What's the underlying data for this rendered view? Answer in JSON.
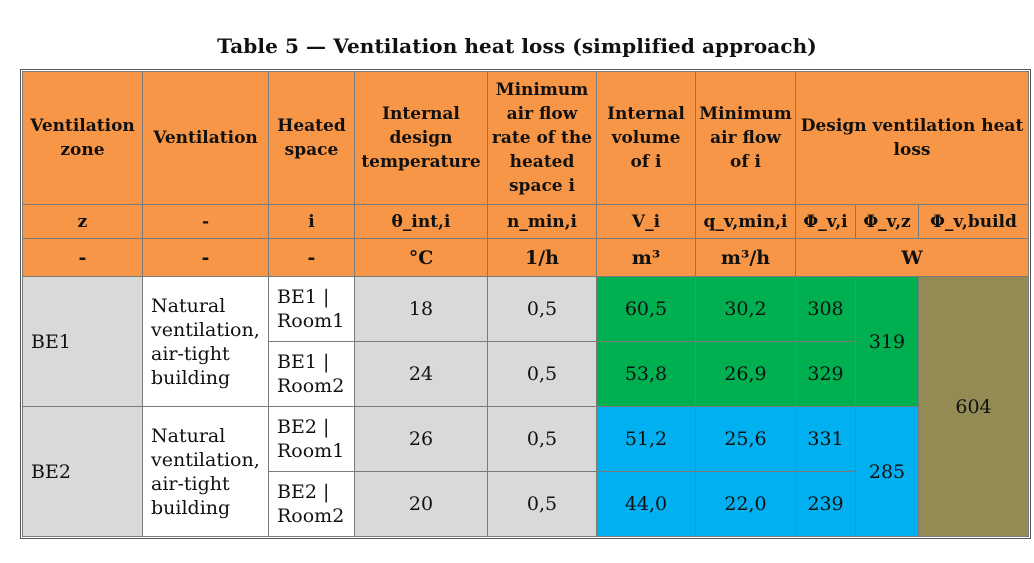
{
  "caption": "Table 5 — Ventilation heat loss (simplified approach)",
  "headers": {
    "zone": "Ventilation zone",
    "ventilation": "Ventilation",
    "space": "Heated space",
    "temp": "Internal design temperature",
    "nmin": "Minimum air flow rate of the heated space i",
    "volume": "Internal volume of i",
    "flow": "Minimum air flow of i",
    "loss": "Design ventilation heat loss"
  },
  "symbols": {
    "zone": "z",
    "ventilation": "-",
    "space": "i",
    "temp": "θ_int,i",
    "nmin": "n_min,i",
    "volume": "V_i",
    "flow": "q_v,min,i",
    "phi_i": "Φ_v,i",
    "phi_z": "Φ_v,z",
    "phi_build": "Φ_v,build"
  },
  "units": {
    "zone": "-",
    "ventilation": "-",
    "space": "-",
    "temp": "°C",
    "nmin": "1/h",
    "volume": "m³",
    "flow": "m³/h",
    "loss": "W"
  },
  "zones": [
    {
      "name": "BE1",
      "ventilation": "Natural ventilation, air-tight building",
      "phi_z": "319",
      "rooms": [
        {
          "space": "BE1 | Room1",
          "temp": "18",
          "nmin": "0,5",
          "volume": "60,5",
          "flow": "30,2",
          "phi_i": "308"
        },
        {
          "space": "BE1 | Room2",
          "temp": "24",
          "nmin": "0,5",
          "volume": "53,8",
          "flow": "26,9",
          "phi_i": "329"
        }
      ]
    },
    {
      "name": "BE2",
      "ventilation": "Natural ventilation, air-tight building",
      "phi_z": "285",
      "rooms": [
        {
          "space": "BE2 | Room1",
          "temp": "26",
          "nmin": "0,5",
          "volume": "51,2",
          "flow": "25,6",
          "phi_i": "331"
        },
        {
          "space": "BE2 | Room2",
          "temp": "20",
          "nmin": "0,5",
          "volume": "44,0",
          "flow": "22,0",
          "phi_i": "239"
        }
      ]
    }
  ],
  "phi_build": "604",
  "colors": {
    "header": "#f79646",
    "zone_bg": "#d9d9d9",
    "be1_highlight": "#00b050",
    "be2_highlight": "#00b0f0",
    "building_total": "#948a54"
  }
}
